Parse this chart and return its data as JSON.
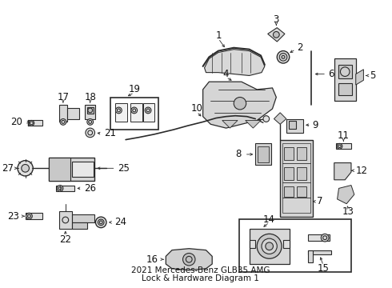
{
  "title_line1": "2021 Mercedes-Benz GLB35 AMG",
  "title_line2": "Lock & Hardware Diagram 1",
  "bg_color": "#ffffff",
  "fig_width": 4.9,
  "fig_height": 3.6,
  "dpi": 100,
  "line_color": "#2a2a2a",
  "text_color": "#111111",
  "font_size": 8.5,
  "title_font_size": 7.5
}
